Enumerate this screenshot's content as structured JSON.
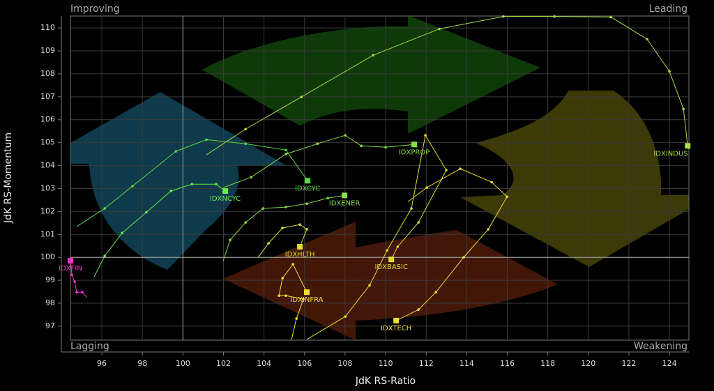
{
  "chart_data": {
    "type": "rrg",
    "xlabel": "JdK RS-Ratio",
    "ylabel": "JdK RS-Momentum",
    "quadrants": {
      "top_left": "Improving",
      "top_right": "Leading",
      "bottom_left": "Lagging",
      "bottom_right": "Weakening"
    },
    "xlim": [
      94.45,
      124.96
    ],
    "ylim": [
      96.39,
      110.52
    ],
    "xticks": [
      96,
      98,
      100,
      102,
      104,
      106,
      108,
      110,
      112,
      114,
      116,
      118,
      120,
      122,
      124
    ],
    "yticks": [
      97,
      98,
      99,
      100,
      101,
      102,
      103,
      104,
      105,
      106,
      107,
      108,
      109,
      110
    ],
    "grid": true,
    "crosshair": {
      "x": 100,
      "y": 100
    },
    "series": [
      {
        "name": "IDXINDUS",
        "color": "#aadd44",
        "x": [
          101.16,
          103.09,
          105.84,
          109.38,
          112.65,
          115.81,
          118.33,
          121.11,
          122.9,
          124.0,
          124.69,
          124.9
        ],
        "y": [
          104.47,
          105.59,
          106.99,
          108.81,
          109.96,
          110.5,
          110.5,
          110.48,
          109.51,
          108.11,
          106.47,
          104.86
        ]
      },
      {
        "name": "IDXPROP",
        "color": "#88dd44",
        "x": [
          101.99,
          103.36,
          105.08,
          106.63,
          108.01,
          108.8,
          110.0,
          111.41
        ],
        "y": [
          103.04,
          103.49,
          104.5,
          104.95,
          105.32,
          104.86,
          104.8,
          104.92
        ]
      },
      {
        "name": "IDXCYC",
        "color": "#55dd44",
        "x": [
          94.76,
          96.14,
          97.51,
          99.65,
          101.16,
          103.09,
          105.08,
          106.15
        ],
        "y": [
          101.34,
          102.13,
          103.1,
          104.62,
          105.13,
          104.95,
          104.68,
          103.34
        ]
      },
      {
        "name": "IDXNCYC",
        "color": "#66ee44",
        "x": [
          95.62,
          96.14,
          97.0,
          98.2,
          99.41,
          100.44,
          101.64,
          102.09
        ],
        "y": [
          99.15,
          100.06,
          101.06,
          101.97,
          102.89,
          103.19,
          103.19,
          102.89
        ]
      },
      {
        "name": "IDXENER",
        "color": "#88dd44",
        "x": [
          101.99,
          102.33,
          103.09,
          103.95,
          105.08,
          106.11,
          107.15,
          107.97
        ],
        "y": [
          99.85,
          100.76,
          101.52,
          102.13,
          102.19,
          102.34,
          102.58,
          102.7
        ]
      },
      {
        "name": "IDXHLTH",
        "color": "#dddd33",
        "x": [
          103.71,
          104.22,
          104.91,
          105.77,
          106.11,
          105.77
        ],
        "y": [
          100.0,
          100.61,
          101.28,
          101.43,
          101.22,
          100.46
        ]
      },
      {
        "name": "IDXINFRA",
        "color": "#eedd33",
        "x": [
          105.36,
          105.6,
          105.94,
          105.08,
          104.74,
          104.91,
          105.43,
          106.11
        ],
        "y": [
          96.42,
          97.33,
          98.18,
          98.33,
          98.33,
          99.09,
          99.7,
          98.48
        ]
      },
      {
        "name": "IDXBASIC",
        "color": "#dddd33",
        "x": [
          106.11,
          108.01,
          109.21,
          110.07,
          111.27,
          111.96,
          112.99,
          111.62,
          110.59,
          110.28
        ],
        "y": [
          96.42,
          97.42,
          98.78,
          100.3,
          102.13,
          105.32,
          103.8,
          101.52,
          100.46,
          99.91
        ]
      },
      {
        "name": "IDXTECH",
        "color": "#eedd33",
        "x": [
          111.1,
          112.03,
          113.68,
          115.23,
          115.99,
          115.06,
          113.85,
          112.48,
          111.62,
          110.52
        ],
        "y": [
          102.43,
          103.04,
          103.86,
          103.28,
          102.64,
          101.22,
          100.0,
          98.48,
          97.72,
          97.24
        ]
      },
      {
        "name": "IDXFIN",
        "color": "#ee33cc",
        "x": [
          95.28,
          95.04,
          94.76,
          94.66,
          94.52,
          94.45
        ],
        "y": [
          98.24,
          98.48,
          98.48,
          98.94,
          99.24,
          99.85
        ]
      }
    ]
  }
}
